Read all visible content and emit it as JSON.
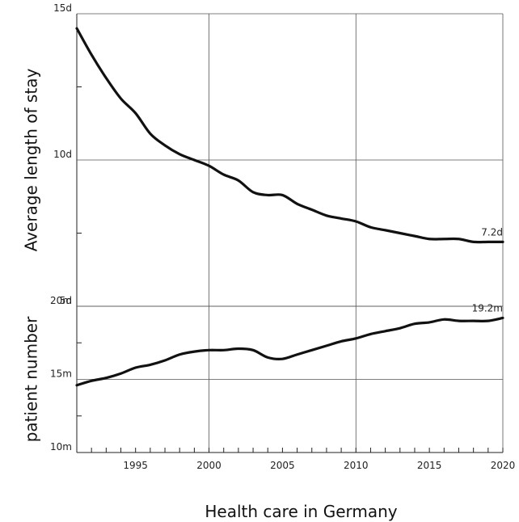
{
  "chart_data": [
    {
      "type": "line",
      "ylabel": "Average length of stay",
      "ylim": [
        5,
        15
      ],
      "y_ticks": [
        {
          "value": 15,
          "label": "15d"
        },
        {
          "value": 10,
          "label": "10d"
        },
        {
          "value": 5,
          "label": "5d"
        }
      ],
      "xlim": [
        1991,
        2020
      ],
      "grid": true,
      "end_label": "7.2d",
      "series": [
        {
          "x": [
            1991,
            1992,
            1993,
            1994,
            1995,
            1996,
            1997,
            1998,
            1999,
            2000,
            2001,
            2002,
            2003,
            2004,
            2005,
            2006,
            2007,
            2008,
            2009,
            2010,
            2011,
            2012,
            2013,
            2014,
            2015,
            2016,
            2017,
            2018,
            2019,
            2020
          ],
          "values": [
            14.5,
            13.6,
            12.8,
            12.1,
            11.6,
            10.9,
            10.5,
            10.2,
            10.0,
            9.8,
            9.5,
            9.3,
            8.9,
            8.8,
            8.8,
            8.5,
            8.3,
            8.1,
            8.0,
            7.9,
            7.7,
            7.6,
            7.5,
            7.4,
            7.3,
            7.3,
            7.3,
            7.2,
            7.2,
            7.2
          ]
        }
      ]
    },
    {
      "type": "line",
      "ylabel": "patient number",
      "ylim": [
        10,
        20
      ],
      "y_ticks": [
        {
          "value": 20,
          "label": "20m"
        },
        {
          "value": 15,
          "label": "15m"
        },
        {
          "value": 10,
          "label": "10m"
        }
      ],
      "xlim": [
        1991,
        2020
      ],
      "grid": true,
      "end_label": "19.2m",
      "series": [
        {
          "x": [
            1991,
            1992,
            1993,
            1994,
            1995,
            1996,
            1997,
            1998,
            1999,
            2000,
            2001,
            2002,
            2003,
            2004,
            2005,
            2006,
            2007,
            2008,
            2009,
            2010,
            2011,
            2012,
            2013,
            2014,
            2015,
            2016,
            2017,
            2018,
            2019,
            2020
          ],
          "values": [
            14.6,
            14.9,
            15.1,
            15.4,
            15.8,
            16.0,
            16.3,
            16.7,
            16.9,
            17.0,
            17.0,
            17.1,
            17.0,
            16.5,
            16.4,
            16.7,
            17.0,
            17.3,
            17.6,
            17.8,
            18.1,
            18.3,
            18.5,
            18.8,
            18.9,
            19.1,
            19.0,
            19.0,
            19.0,
            19.2
          ]
        }
      ]
    }
  ],
  "x_axis": {
    "tick_labels": [
      "1995",
      "2000",
      "2005",
      "2010",
      "2015",
      "2020"
    ],
    "title": "Health care in Germany"
  },
  "colors": {
    "line": "#111111",
    "grid": "#555555"
  }
}
